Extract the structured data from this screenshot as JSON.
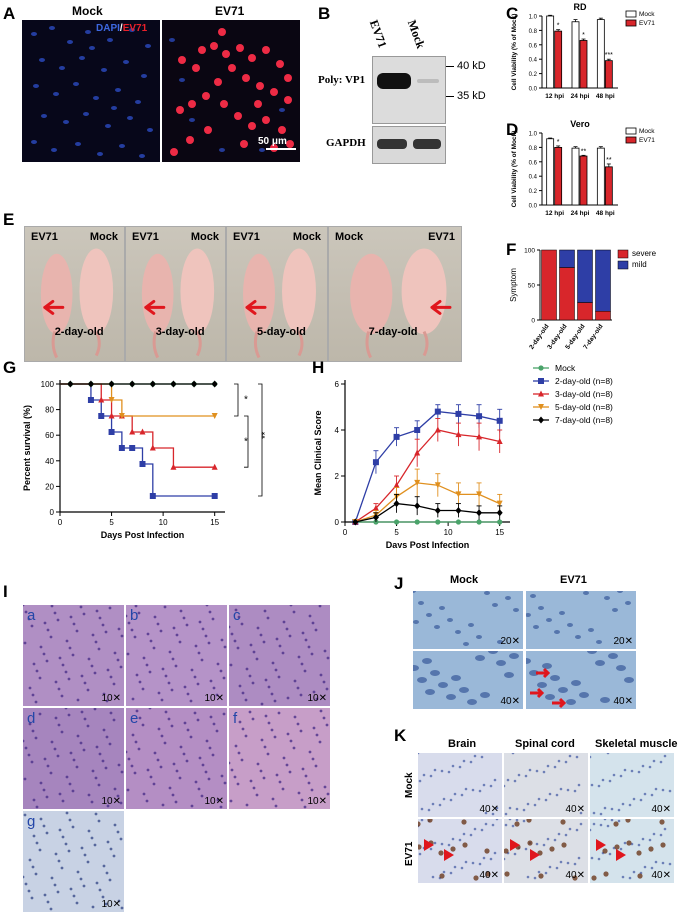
{
  "panels": {
    "A": "A",
    "B": "B",
    "C": "C",
    "D": "D",
    "E": "E",
    "F": "F",
    "G": "G",
    "H": "H",
    "I": "I",
    "J": "J",
    "K": "K"
  },
  "panelA": {
    "mock": "Mock",
    "ev71": "EV71",
    "dapi": "DAPI",
    "slash": "/",
    "ev71_stain": "EV71",
    "scalebar": "50 μm",
    "colors": {
      "dapi": "#2f5bd6",
      "ev71": "#e8202a"
    }
  },
  "panelB": {
    "col1": "EV71",
    "col2": "Mock",
    "row1": "Poly: VP1",
    "row2": "GAPDH",
    "mw1": "40 kD",
    "mw2": "35 kD"
  },
  "panelC": {
    "title": "RD",
    "ylabel": "Cell Viability (% of Mock)",
    "legend": [
      "Mock",
      "EV71"
    ]
  },
  "panelD": {
    "title": "Vero",
    "ylabel": "Cell Viability (% of Mock)",
    "legend": [
      "Mock",
      "EV71"
    ]
  },
  "panelE": {
    "labels": [
      {
        "left": "EV71",
        "right": "Mock",
        "age": "2-day-old"
      },
      {
        "left": "EV71",
        "right": "Mock",
        "age": "3-day-old"
      },
      {
        "left": "EV71",
        "right": "Mock",
        "age": "5-day-old"
      },
      {
        "left": "Mock",
        "right": "EV71",
        "age": "7-day-old"
      }
    ]
  },
  "panelF": {
    "ylabel": "Symptom",
    "legend": [
      "severe",
      "mild"
    ]
  },
  "panelG": {
    "ylabel": "Percent survival (%)",
    "xlabel": "Days Post Infection",
    "sig": [
      "*",
      "*",
      "**"
    ]
  },
  "panelH": {
    "ylabel": "Mean Clinical Score",
    "xlabel": "Days Post Infection",
    "legend": [
      "Mock",
      "2-day-old (n=8)",
      "3-day-old (n=8)",
      "5-day-old (n=8)",
      "7-day-old (n=8)"
    ]
  },
  "panelI": {
    "tiles": [
      "a",
      "b",
      "c",
      "d",
      "e",
      "f",
      "g"
    ],
    "mag": "10✕"
  },
  "panelJ": {
    "mock": "Mock",
    "ev71": "EV71",
    "mag20": "20✕",
    "mag40": "40✕"
  },
  "panelK": {
    "cols": [
      "Brain",
      "Spinal cord",
      "Skeletal muscle"
    ],
    "rows": [
      "Mock",
      "EV71"
    ],
    "mag": "40✕"
  },
  "chart_data": [
    {
      "id": "C",
      "type": "bar",
      "title": "RD",
      "ylabel": "Cell Viability (% of Mock)",
      "categories": [
        "12 hpi",
        "24 hpi",
        "48 hpi"
      ],
      "ylim": [
        0,
        1.0
      ],
      "yticks": [
        0,
        0.2,
        0.4,
        0.6,
        0.8,
        1.0
      ],
      "series": [
        {
          "name": "Mock",
          "color": "#ffffff",
          "values": [
            1.0,
            0.92,
            0.95
          ],
          "err": [
            0.01,
            0.03,
            0.02
          ]
        },
        {
          "name": "EV71",
          "color": "#d8262b",
          "values": [
            0.79,
            0.66,
            0.38
          ],
          "err": [
            0.02,
            0.02,
            0.02
          ]
        }
      ],
      "annotations": [
        "*",
        "*",
        "***"
      ]
    },
    {
      "id": "D",
      "type": "bar",
      "title": "Vero",
      "ylabel": "Cell Viability (% of Mock)",
      "categories": [
        "12 hpi",
        "24 hpi",
        "48 hpi"
      ],
      "ylim": [
        0,
        1.0
      ],
      "yticks": [
        0,
        0.2,
        0.4,
        0.6,
        0.8,
        1.0
      ],
      "series": [
        {
          "name": "Mock",
          "color": "#ffffff",
          "values": [
            0.92,
            0.79,
            0.79
          ],
          "err": [
            0.01,
            0.02,
            0.02
          ]
        },
        {
          "name": "EV71",
          "color": "#d8262b",
          "values": [
            0.8,
            0.68,
            0.53
          ],
          "err": [
            0.02,
            0.01,
            0.04
          ]
        }
      ],
      "annotations": [
        "*",
        "**",
        "**"
      ]
    },
    {
      "id": "F",
      "type": "bar",
      "stacked": true,
      "ylabel": "Symptom",
      "categories": [
        "2-day-old",
        "3-day-old",
        "5-day-old",
        "7-day-old"
      ],
      "ylim": [
        0,
        100
      ],
      "yticks": [
        0,
        50,
        100
      ],
      "series": [
        {
          "name": "severe",
          "color": "#d8262b",
          "values": [
            100,
            75,
            25,
            12.5
          ]
        },
        {
          "name": "mild",
          "color": "#2e3ea6",
          "values": [
            0,
            25,
            75,
            87.5
          ]
        }
      ]
    },
    {
      "id": "G",
      "type": "line",
      "step": true,
      "xlabel": "Days Post Infection",
      "ylabel": "Percent survival (%)",
      "xlim": [
        0,
        16
      ],
      "ylim": [
        0,
        100
      ],
      "xticks": [
        0,
        5,
        10,
        15
      ],
      "yticks": [
        0,
        20,
        40,
        60,
        80,
        100
      ],
      "series": [
        {
          "name": "Mock",
          "color": "#4aa36a",
          "x": [
            0,
            1,
            3,
            5,
            7,
            9,
            11,
            13,
            15
          ],
          "y": [
            100,
            100,
            100,
            100,
            100,
            100,
            100,
            100,
            100
          ]
        },
        {
          "name": "2-day-old (n=8)",
          "color": "#2e3ea6",
          "x": [
            0,
            3,
            4,
            5,
            6,
            7,
            8,
            9,
            15
          ],
          "y": [
            100,
            87.5,
            75,
            62.5,
            50,
            50,
            37.5,
            12.5,
            12.5
          ]
        },
        {
          "name": "3-day-old (n=8)",
          "color": "#d8262b",
          "x": [
            0,
            4,
            5,
            6,
            7,
            8,
            9,
            11,
            15
          ],
          "y": [
            100,
            87.5,
            75,
            75,
            62.5,
            62.5,
            50,
            35,
            35
          ]
        },
        {
          "name": "5-day-old (n=8)",
          "color": "#e0901f",
          "x": [
            0,
            5,
            6,
            15
          ],
          "y": [
            100,
            87.5,
            75,
            75
          ]
        },
        {
          "name": "7-day-old (n=8)",
          "color": "#000000",
          "x": [
            0,
            1,
            3,
            5,
            7,
            9,
            11,
            13,
            15
          ],
          "y": [
            100,
            100,
            100,
            100,
            100,
            100,
            100,
            100,
            100
          ]
        }
      ]
    },
    {
      "id": "H",
      "type": "line",
      "xlabel": "Days Post Infection",
      "ylabel": "Mean Clinical Score",
      "xlim": [
        0,
        16
      ],
      "ylim": [
        0,
        6
      ],
      "xticks": [
        0,
        5,
        10,
        15
      ],
      "yticks": [
        0,
        2,
        4,
        6
      ],
      "series": [
        {
          "name": "Mock",
          "color": "#4aa36a",
          "x": [
            1,
            3,
            5,
            7,
            9,
            11,
            13,
            15
          ],
          "y": [
            0,
            0,
            0,
            0,
            0,
            0,
            0,
            0
          ],
          "err": [
            0,
            0,
            0,
            0,
            0,
            0,
            0,
            0
          ]
        },
        {
          "name": "2-day-old (n=8)",
          "color": "#2e3ea6",
          "x": [
            1,
            3,
            5,
            7,
            9,
            11,
            13,
            15
          ],
          "y": [
            0,
            2.6,
            3.7,
            4.0,
            4.8,
            4.7,
            4.6,
            4.4
          ],
          "err": [
            0,
            0.5,
            0.4,
            0.4,
            0.3,
            0.4,
            0.5,
            0.5
          ]
        },
        {
          "name": "3-day-old (n=8)",
          "color": "#d8262b",
          "x": [
            1,
            3,
            5,
            7,
            9,
            11,
            13,
            15
          ],
          "y": [
            0,
            0.6,
            1.6,
            3.0,
            4.0,
            3.8,
            3.7,
            3.5
          ],
          "err": [
            0,
            0.2,
            0.4,
            0.6,
            0.5,
            0.5,
            0.6,
            0.5
          ]
        },
        {
          "name": "5-day-old (n=8)",
          "color": "#e0901f",
          "x": [
            1,
            3,
            5,
            7,
            9,
            11,
            13,
            15
          ],
          "y": [
            0,
            0.3,
            1.1,
            1.7,
            1.6,
            1.2,
            1.2,
            0.8
          ],
          "err": [
            0,
            0.2,
            0.4,
            0.6,
            0.5,
            0.5,
            0.5,
            0.4
          ]
        },
        {
          "name": "7-day-old (n=8)",
          "color": "#000000",
          "x": [
            1,
            3,
            5,
            7,
            9,
            11,
            13,
            15
          ],
          "y": [
            0,
            0.2,
            0.8,
            0.7,
            0.5,
            0.5,
            0.4,
            0.4
          ],
          "err": [
            0,
            0.2,
            0.4,
            0.4,
            0.3,
            0.3,
            0.3,
            0.3
          ]
        }
      ]
    }
  ]
}
